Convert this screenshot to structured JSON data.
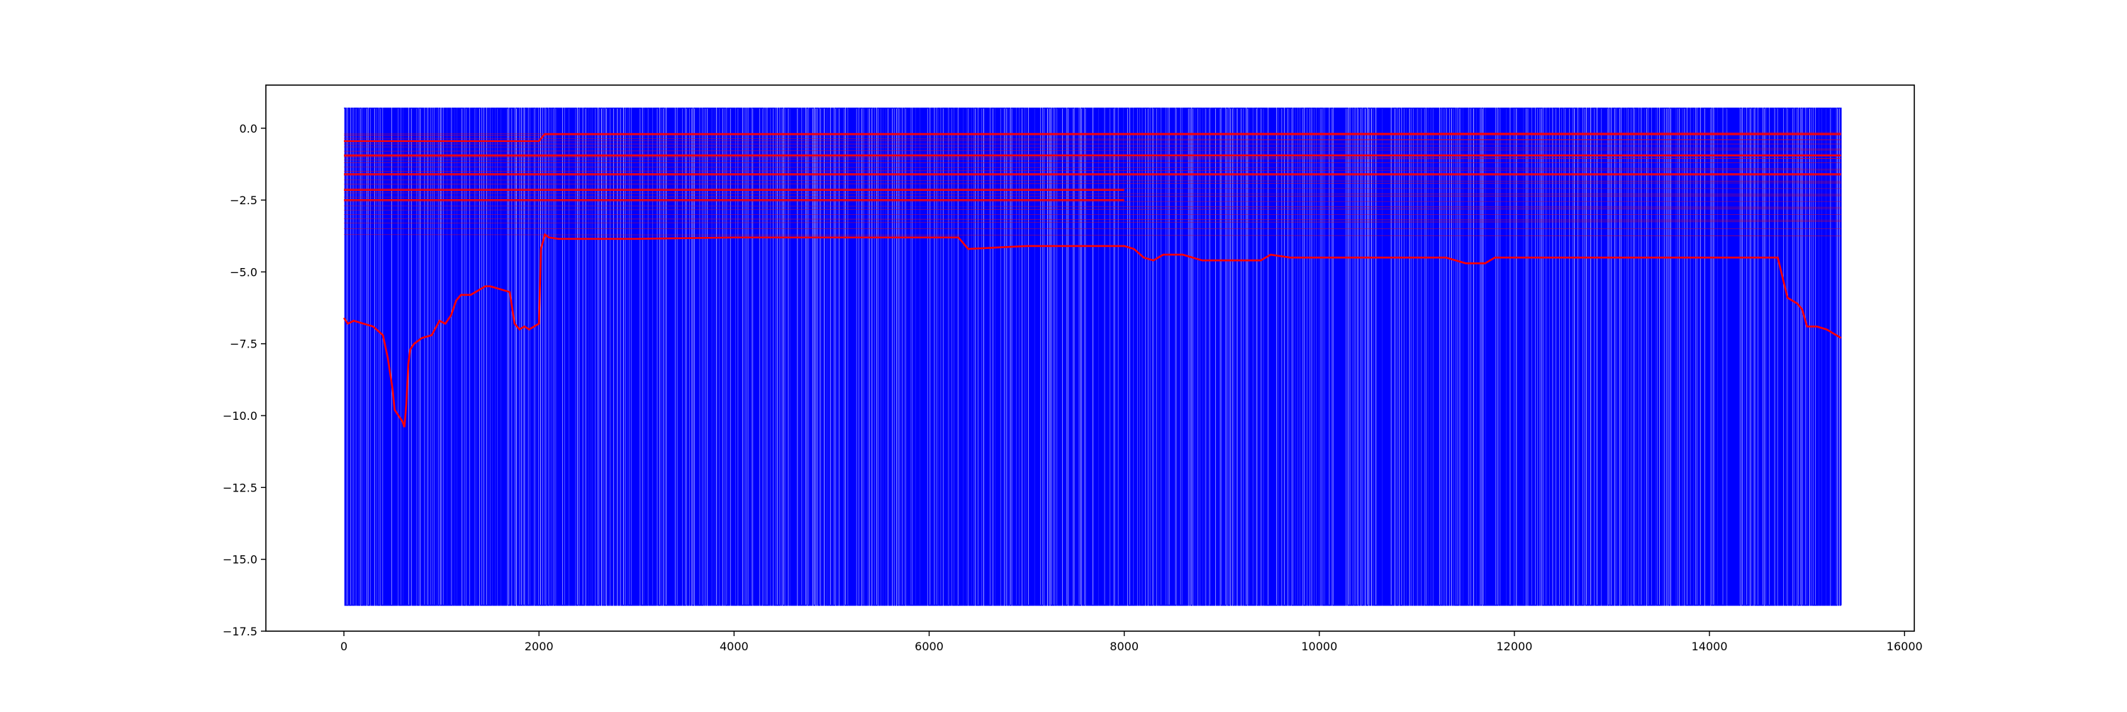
{
  "chart_data": {
    "type": "line",
    "title": "",
    "xlabel": "",
    "ylabel": "",
    "xlim": [
      -800,
      16100
    ],
    "ylim": [
      -17.5,
      1.5
    ],
    "xticks": [
      0,
      2000,
      4000,
      6000,
      8000,
      10000,
      12000,
      14000,
      16000
    ],
    "xtick_labels": [
      "0",
      "2000",
      "4000",
      "6000",
      "8000",
      "10000",
      "12000",
      "14000",
      "16000"
    ],
    "yticks": [
      0.0,
      -2.5,
      -5.0,
      -7.5,
      -10.0,
      -12.5,
      -15.0,
      -17.5
    ],
    "ytick_labels": [
      "0.0",
      "−2.5",
      "−5.0",
      "−7.5",
      "−10.0",
      "−12.5",
      "−15.0",
      "−17.5"
    ],
    "grid": false,
    "legend": "none",
    "colors": {
      "signal": "#0000ff",
      "envelope": "#ff0000"
    },
    "series": [
      {
        "color": "#0000ff",
        "style": "dense vertical oscillation",
        "x_range": [
          0,
          15350
        ],
        "y_high": 0.7,
        "y_low": -16.6,
        "approx_transition_count": 2100
      },
      {
        "color": "#ff0000",
        "style": "thick envelope line",
        "x": [
          0,
          40,
          100,
          200,
          300,
          400,
          450,
          500,
          520,
          560,
          600,
          620,
          640,
          660,
          680,
          720,
          800,
          900,
          980,
          1040,
          1100,
          1150,
          1200,
          1300,
          1400,
          1450,
          1500,
          1600,
          1700,
          1750,
          1800,
          1850,
          1900,
          2000,
          2020,
          2060,
          2100,
          2200,
          3000,
          4000,
          5000,
          6000,
          6300,
          6400,
          7000,
          8000,
          8100,
          8200,
          8300,
          8400,
          8600,
          8800,
          9400,
          9500,
          9700,
          10000,
          11000,
          11300,
          11500,
          11700,
          11800,
          12000,
          13000,
          14000,
          14600,
          14700,
          14750,
          14800,
          14900,
          14950,
          15000,
          15100,
          15200,
          15350
        ],
        "y": [
          -6.6,
          -6.8,
          -6.7,
          -6.8,
          -6.9,
          -7.2,
          -8.0,
          -9.1,
          -9.8,
          -10.0,
          -10.2,
          -10.4,
          -9.6,
          -8.2,
          -7.7,
          -7.5,
          -7.3,
          -7.2,
          -6.7,
          -6.8,
          -6.5,
          -6.0,
          -5.8,
          -5.8,
          -5.6,
          -5.5,
          -5.5,
          -5.6,
          -5.7,
          -6.8,
          -7.0,
          -6.9,
          -7.0,
          -6.8,
          -4.2,
          -3.7,
          -3.8,
          -3.85,
          -3.85,
          -3.8,
          -3.8,
          -3.8,
          -3.8,
          -4.2,
          -4.1,
          -4.1,
          -4.2,
          -4.5,
          -4.6,
          -4.4,
          -4.4,
          -4.6,
          -4.6,
          -4.4,
          -4.5,
          -4.5,
          -4.5,
          -4.5,
          -4.7,
          -4.7,
          -4.5,
          -4.5,
          -4.5,
          -4.5,
          -4.5,
          -4.5,
          -5.2,
          -5.9,
          -6.1,
          -6.3,
          -6.9,
          -6.9,
          -7.0,
          -7.3
        ]
      },
      {
        "color": "#ff0000",
        "style": "thin background lines",
        "levels": [
          -0.2,
          -0.25,
          -0.35,
          -0.45,
          -0.55,
          -0.65,
          -0.8,
          -0.9,
          -1.0,
          -1.1,
          -1.2,
          -1.35,
          -1.5,
          -1.65,
          -1.8,
          -1.95,
          -2.1,
          -2.25,
          -2.4,
          -2.55,
          -2.7,
          -2.85,
          -3.0,
          -3.15,
          -3.3,
          -3.5,
          -3.7
        ]
      },
      {
        "color": "#ff0000",
        "style": "thick step lines",
        "lines": [
          {
            "x": [
              0,
              2000,
              2060,
              15350
            ],
            "y": [
              -0.45,
              -0.45,
              -0.2,
              -0.2
            ]
          },
          {
            "x": [
              0,
              15350
            ],
            "y": [
              -0.95,
              -0.95
            ]
          },
          {
            "x": [
              0,
              15350
            ],
            "y": [
              -1.6,
              -1.6
            ]
          },
          {
            "x": [
              0,
              8000
            ],
            "y": [
              -2.15,
              -2.15
            ]
          },
          {
            "x": [
              0,
              8000
            ],
            "y": [
              -2.5,
              -2.5
            ]
          }
        ]
      }
    ]
  }
}
